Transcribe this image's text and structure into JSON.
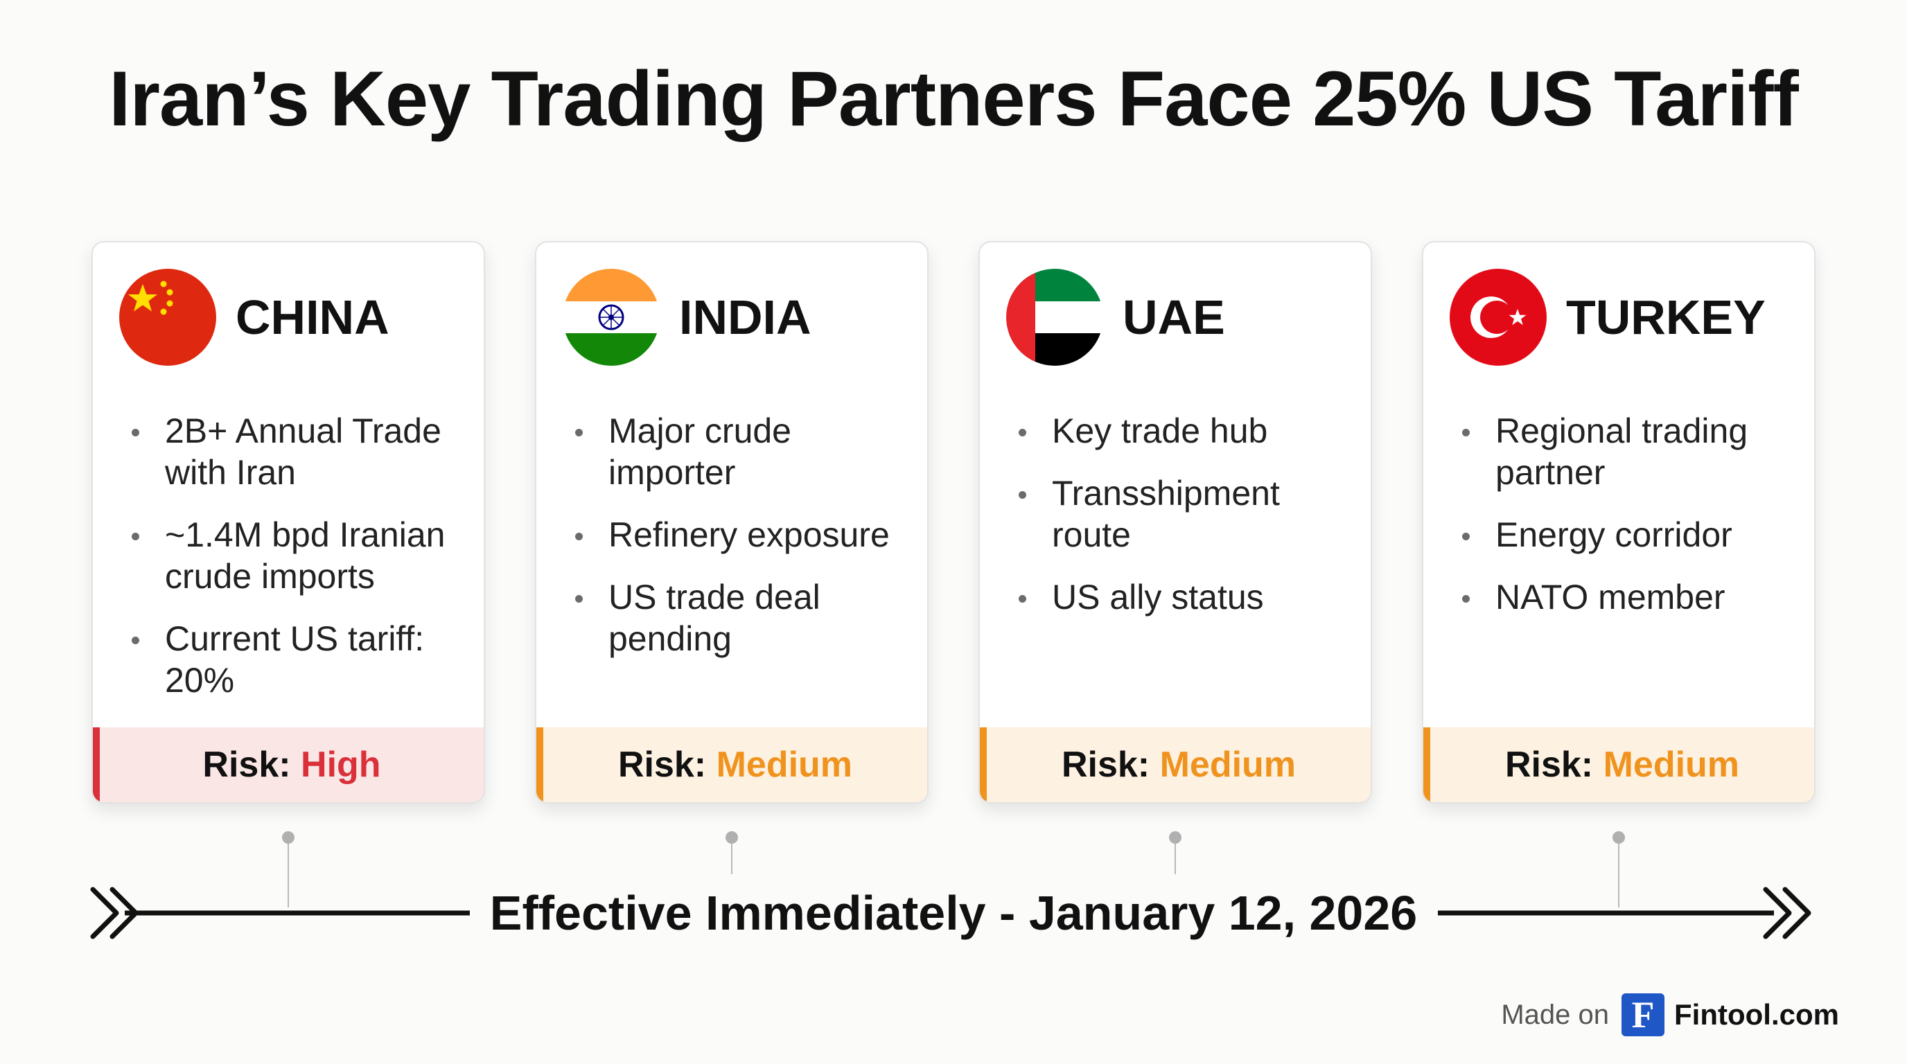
{
  "title": "Iran’s Key Trading Partners Face 25% US Tariff",
  "cards": [
    {
      "country": "CHINA",
      "flag_icon": "china-flag-icon",
      "bullets": [
        "2B+ Annual Trade with Iran",
        "~1.4M bpd Iranian crude imports",
        "Current US tariff: 20%"
      ],
      "risk_label": "Risk:",
      "risk_value": "High"
    },
    {
      "country": "INDIA",
      "flag_icon": "india-flag-icon",
      "bullets": [
        "Major crude importer",
        "Refinery exposure",
        "US trade deal pending"
      ],
      "risk_label": "Risk:",
      "risk_value": "Medium"
    },
    {
      "country": "UAE",
      "flag_icon": "uae-flag-icon",
      "bullets": [
        "Key trade hub",
        "Transshipment route",
        "US ally status"
      ],
      "risk_label": "Risk:",
      "risk_value": "Medium"
    },
    {
      "country": "TURKEY",
      "flag_icon": "turkey-flag-icon",
      "bullets": [
        "Regional trading partner",
        "Energy corridor",
        "NATO member"
      ],
      "risk_label": "Risk:",
      "risk_value": "Medium"
    }
  ],
  "timeline": {
    "label": "Effective Immediately - January 12, 2026"
  },
  "footer": {
    "made_on": "Made on",
    "logo_letter": "F",
    "brand": "Fintool.com"
  },
  "colors": {
    "high": "#d9303a",
    "medium": "#f0931e",
    "brand": "#1f57c7"
  }
}
